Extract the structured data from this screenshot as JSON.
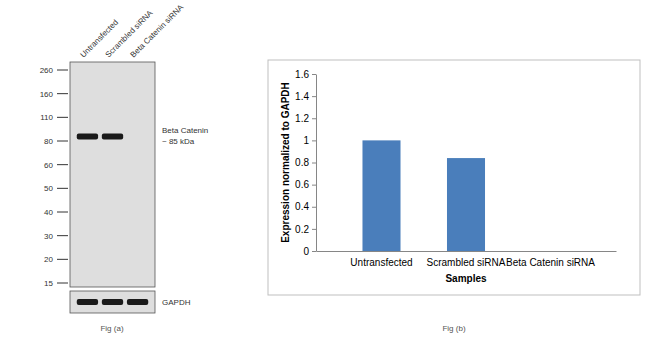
{
  "blot": {
    "caption": "Fig (a)",
    "lanes": [
      "Untransfected",
      "Scrambled siRNA",
      "Beta Catenin siRNA"
    ],
    "markers": [
      260,
      160,
      110,
      80,
      60,
      50,
      40,
      30,
      20,
      15
    ],
    "target": {
      "name": "Beta Catenin",
      "size_label": "~ 85 kDa",
      "kda": 85,
      "band_present": [
        true,
        true,
        false
      ]
    },
    "loading_control": {
      "name": "GAPDH",
      "band_present": [
        true,
        true,
        true
      ]
    }
  },
  "chart_data": {
    "type": "bar",
    "caption": "Fig (b)",
    "categories": [
      "Untransfected",
      "Scrambled siRNA",
      "Beta Catenin siRNA"
    ],
    "values": [
      1,
      0.84,
      0
    ],
    "color": "#4a7ebb",
    "ylim": [
      0,
      1.6
    ],
    "yticks": [
      0,
      0.2,
      0.4,
      0.6,
      0.8,
      1,
      1.2,
      1.4,
      1.6
    ],
    "xlabel": "Samples",
    "ylabel": "Expression normalized to GAPDH",
    "grid": false
  }
}
